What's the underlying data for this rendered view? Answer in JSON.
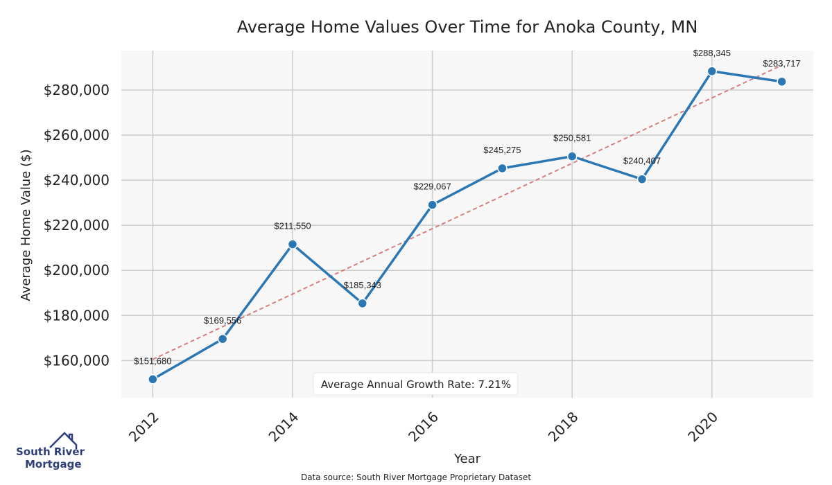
{
  "chart_data": {
    "type": "line",
    "title": "Average Home Values Over Time for Anoka County, MN",
    "xlabel": "Year",
    "ylabel": "Average Home Value ($)",
    "x": [
      2012,
      2013,
      2014,
      2015,
      2016,
      2017,
      2018,
      2019,
      2020,
      2021
    ],
    "series": [
      {
        "values": [
          151680,
          169556,
          211550,
          185343,
          229067,
          245275,
          250581,
          240407,
          288345,
          283717
        ],
        "labels": [
          "$151,680",
          "$169,556",
          "$211,550",
          "$185,343",
          "$229,067",
          "$245,275",
          "$250,581",
          "$240,407",
          "$288,345",
          "$283,717"
        ],
        "color": "#2a77b4"
      }
    ],
    "trendline": {
      "start": [
        2012,
        160500
      ],
      "end": [
        2021,
        291000
      ],
      "color": "#d47f7f",
      "style": "dashed"
    },
    "xticks": [
      2012,
      2014,
      2016,
      2018,
      2020
    ],
    "xtick_labels": [
      "2012",
      "2014",
      "2016",
      "2018",
      "2020"
    ],
    "yticks": [
      160000,
      180000,
      200000,
      220000,
      240000,
      260000,
      280000
    ],
    "ytick_labels": [
      "$160,000",
      "$180,000",
      "$200,000",
      "$220,000",
      "$240,000",
      "$260,000",
      "$280,000"
    ],
    "xlim": [
      2011.55,
      2021.45
    ],
    "ylim": [
      143500,
      297500
    ],
    "grid": true,
    "annotation": "Average Annual Growth Rate: 7.21%",
    "source": "Data source: South River Mortgage Proprietary Dataset",
    "colors": {
      "plot_bg": "#f7f7f7",
      "grid": "#cccccc",
      "line": "#2a77b4",
      "trend": "#d47f7f"
    }
  },
  "logo": {
    "line1": "South River",
    "line2": "Mortgage",
    "color": "#2e3f7a"
  }
}
